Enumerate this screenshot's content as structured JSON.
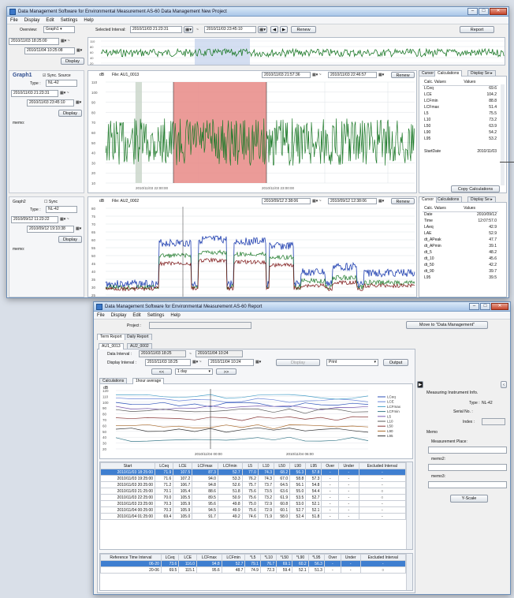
{
  "main_window": {
    "title": "Data Management Software for Environmental Measurement AS-60 Data Management New Project",
    "menu": [
      "File",
      "Display",
      "Edit",
      "Settings",
      "Help"
    ],
    "overview_label": "Overview:",
    "overview_select": "Graph1",
    "selected_interval_label": "Selected Interval:",
    "selected_start": "2010/11/03 21:23:31",
    "selected_end": "2010/11/03 23:45:10",
    "tilde": "~",
    "renew": "Renew",
    "report": "Report",
    "overview_start": "2010/11/03 18:25:00",
    "overview_end": "2010/11/04 10:25:08",
    "display": "Display",
    "overview_y_ticks": [
      "110",
      "80",
      "60",
      "40",
      "20"
    ],
    "graph1": {
      "name": "Graph1",
      "sync_label": "Sync. Source",
      "type_label": "Type :",
      "type_value": "NL-42",
      "start": "2010/11/03 21:23:31",
      "end": "2010/11/03 23:45:10",
      "memo_label": "memo:",
      "unit": "dB",
      "file": "File: AU1_0013",
      "range_start": "2010/11/03 21:57:36",
      "range_end": "2010/11/03 22:46:57",
      "y_ticks": [
        "110",
        "100",
        "90",
        "80",
        "70",
        "60",
        "50",
        "40",
        "30",
        "20",
        "10"
      ],
      "x_ticks": [
        "2010/11/03 22:00:00",
        "2010/11/03 23:00:00"
      ]
    },
    "graph2": {
      "name": "Graph2",
      "sync_label": "Sync",
      "type_label": "Type :",
      "type_value": "NL-42",
      "start": "2010/09/12 11:23:22",
      "end": "2010/09/12 19:10:38",
      "memo_label": "memo:",
      "unit": "dB",
      "file": "File: AU2_0002",
      "range_start": "2010/09/12 2:38:06",
      "range_end": "2010/09/12 12:38:06",
      "y_ticks": [
        "80",
        "75",
        "70",
        "65",
        "60",
        "55",
        "50",
        "45",
        "40",
        "35",
        "30",
        "25"
      ]
    },
    "calc1": {
      "tabs": [
        "Cursor",
        "Calculations",
        "Display Se"
      ],
      "headers": [
        "Calc. Values",
        "Values"
      ],
      "rows": [
        [
          "LCeq",
          "69.6"
        ],
        [
          "LCE",
          "104.2"
        ],
        [
          "LCFmin",
          "88.8"
        ],
        [
          "LCFmax",
          "51.4"
        ],
        [
          "L5",
          "75.5"
        ],
        [
          "L10",
          "73.2"
        ],
        [
          "L50",
          "63.9"
        ],
        [
          "L90",
          "54.2"
        ],
        [
          "L95",
          "53.2"
        ],
        [
          "",
          ""
        ],
        [
          "StartDate",
          "2010/11/03"
        ]
      ],
      "copy_button": "Copy Calculations"
    },
    "calc2": {
      "tabs": [
        "Cursor",
        "Calculations",
        "Display Se"
      ],
      "headers": [
        "Calc. Values",
        "Values"
      ],
      "rows": [
        [
          "Date",
          "2010/09/12"
        ],
        [
          "Time",
          "12:07:57.0"
        ],
        [
          "LAeq",
          "42.9"
        ],
        [
          "LAE",
          "52.9"
        ],
        [
          "dt_APeak",
          "47.7"
        ],
        [
          "dt_APmin",
          "39.1"
        ],
        [
          "dt_5",
          "48.2"
        ],
        [
          "dt_10",
          "45.6"
        ],
        [
          "dt_50",
          "42.2"
        ],
        [
          "dt_90",
          "39.7"
        ],
        [
          "L95",
          "39.5"
        ]
      ]
    }
  },
  "report_window": {
    "title": "Data Management Software for Environmental Measurement AS-60 Report",
    "menu": [
      "File",
      "Display",
      "Edit",
      "Settings",
      "Help"
    ],
    "project_label": "Project :",
    "move_button": "Move to \"Data Management\"",
    "top_tabs": [
      "Term Report",
      "Daily Report"
    ],
    "file_tabs": [
      "AU1_0013",
      "AU2_0002"
    ],
    "data_interval_label": "Data Interval :",
    "data_start": "2010/11/03 18:25",
    "data_end": "2010/11/04 10:24",
    "display_interval_label": "Display Interval :",
    "display_start": "2010/11/03 18:25",
    "display_end": "2010/11/04 10:24",
    "display_button": "Display",
    "print_select": "Print",
    "output_button": "Output",
    "nav_prev": "<<",
    "day_select": "1 day",
    "nav_next": ">>",
    "sub_tabs": [
      "Calculations",
      "1hour average"
    ],
    "chart_unit": "dB",
    "chart_y_ticks": [
      "120",
      "110",
      "100",
      "90",
      "80",
      "70",
      "60",
      "50",
      "40",
      "30",
      "20"
    ],
    "chart_x_ticks": [
      "2010/11/04 00:00",
      "2010/11/04 06:00"
    ],
    "legend": [
      "LCeq",
      "LCE",
      "LCFmax",
      "LCFmin",
      "L5",
      "L10",
      "L50",
      "L90",
      "L95"
    ],
    "table_headers": [
      "Start",
      "LCeq",
      "LCE",
      "LCFmax",
      "LCFmin",
      "L5",
      "L10",
      "L50",
      "L90",
      "L95",
      "Over",
      "Under",
      "Excluded Interval"
    ],
    "table_rows": [
      [
        "2010/11/03 18:25:00",
        "71.9",
        "107.5",
        "87.3",
        "52.7",
        "77.0",
        "74.3",
        "68.2",
        "56.3",
        "57.8",
        "-",
        "-",
        "-"
      ],
      [
        "2010/11/03 19:25:00",
        "71.6",
        "107.2",
        "94.0",
        "53.3",
        "76.2",
        "74.3",
        "67.0",
        "58.8",
        "57.3",
        "-",
        "-",
        "-"
      ],
      [
        "2010/11/03 20:25:00",
        "71.2",
        "106.7",
        "94.8",
        "52.6",
        "75.7",
        "73.7",
        "64.5",
        "56.1",
        "54.8",
        "-",
        "-",
        "-"
      ],
      [
        "2010/11/03 21:25:00",
        "70.1",
        "105.4",
        "88.6",
        "51.8",
        "75.6",
        "73.5",
        "63.6",
        "55.0",
        "54.4",
        "-",
        "-",
        "○"
      ],
      [
        "2010/11/03 22:25:00",
        "70.0",
        "105.5",
        "89.5",
        "50.9",
        "75.6",
        "73.2",
        "61.9",
        "53.5",
        "52.7",
        "-",
        "-",
        "○"
      ],
      [
        "2010/11/03 23:25:00",
        "70.3",
        "105.9",
        "95.6",
        "49.8",
        "75.0",
        "72.9",
        "60.8",
        "53.0",
        "52.1",
        "-",
        "-",
        "-"
      ],
      [
        "2010/11/04 00:25:00",
        "70.3",
        "105.9",
        "94.5",
        "49.9",
        "75.6",
        "72.9",
        "60.1",
        "52.7",
        "52.1",
        "-",
        "-",
        "-"
      ],
      [
        "2010/11/04 01:25:00",
        "69.4",
        "105.0",
        "91.7",
        "49.2",
        "74.6",
        "71.9",
        "58.0",
        "52.4",
        "51.8",
        "-",
        "-",
        "-"
      ]
    ],
    "ref_headers": [
      "Reference Time Interval",
      "LCeq",
      "LCE",
      "LCFmax",
      "LCFmin",
      "*L5",
      "*L10",
      "*L50",
      "*L90",
      "*L95",
      "Over",
      "Under",
      "Excluded Interval"
    ],
    "ref_rows": [
      [
        "06-20",
        "73.6",
        "116.0",
        "94.8",
        "52.7",
        "79.1",
        "76.7",
        "69.1",
        "60.2",
        "56.3",
        "-",
        "-",
        "-"
      ],
      [
        "20-06",
        "69.5",
        "115.1",
        "95.6",
        "48.7",
        "74.9",
        "72.3",
        "59.4",
        "52.1",
        "51.3",
        "-",
        "-",
        "○"
      ]
    ],
    "info_title": "Measuring Instrument Info.",
    "type_label": "Type :",
    "type_value": "NL-42",
    "serial_label": "Serial No. :",
    "index_label": "Index :",
    "memo_title": "Memo",
    "place_label": "Measurement Place:",
    "memo2_label": "memo2:",
    "memo3_label": "memo3:",
    "yscale_button": "Y-Scale"
  },
  "colors": {
    "green": "#1e7a2a",
    "red_band": "#e88a86",
    "blue": "#1f3fb0",
    "dark_red": "#7a1010",
    "selected": "#3f7fd0"
  }
}
